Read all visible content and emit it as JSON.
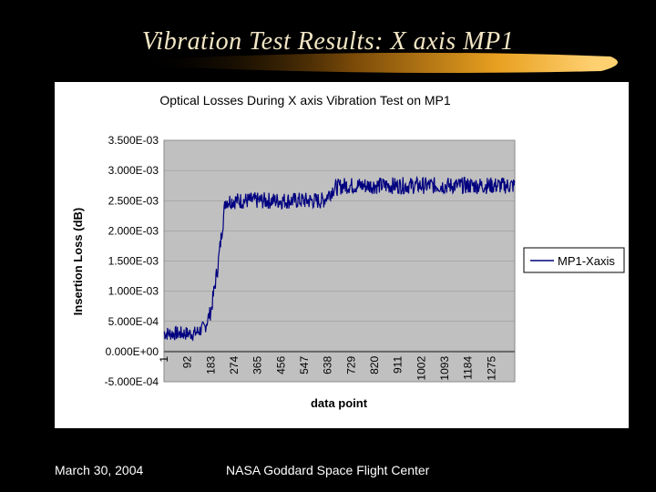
{
  "slide": {
    "title": "Vibration Test Results: X axis MP1",
    "footer_date": "March 30, 2004",
    "footer_org": "NASA Goddard Space Flight Center"
  },
  "colors": {
    "background": "#000000",
    "title_text": "#f2e6c4",
    "swoosh": "#e8a020",
    "plot_area": "#c0c0c0",
    "series_line": "#000080"
  },
  "chart_data": {
    "type": "line",
    "title": "Optical Losses During X axis Vibration Test on MP1",
    "xlabel": "data point",
    "ylabel": "Insertion Loss (dB)",
    "ylim": [
      -0.0005,
      0.0035
    ],
    "y_ticks": [
      "3.500E-03",
      "3.000E-03",
      "2.500E-03",
      "2.000E-03",
      "1.500E-03",
      "1.000E-03",
      "5.000E-04",
      "0.000E+00",
      "-5.000E-04"
    ],
    "x_ticks": [
      "1",
      "92",
      "183",
      "274",
      "365",
      "456",
      "547",
      "638",
      "729",
      "820",
      "911",
      "1002",
      "1093",
      "1184",
      "1275"
    ],
    "x_range": [
      1,
      1366
    ],
    "grid": true,
    "legend": "right",
    "series": [
      {
        "name": "MP1-Xaxis",
        "x": [
          1,
          50,
          120,
          160,
          185,
          210,
          240,
          300,
          400,
          500,
          580,
          620,
          660,
          700,
          800,
          900,
          1000,
          1100,
          1200,
          1275,
          1366
        ],
        "y": [
          0.0003,
          0.0003,
          0.0003,
          0.0004,
          0.0007,
          0.0014,
          0.0025,
          0.0025,
          0.0025,
          0.0025,
          0.0025,
          0.0025,
          0.0027,
          0.00275,
          0.00275,
          0.00275,
          0.00275,
          0.00275,
          0.00275,
          0.00275,
          0.00275
        ]
      }
    ]
  }
}
